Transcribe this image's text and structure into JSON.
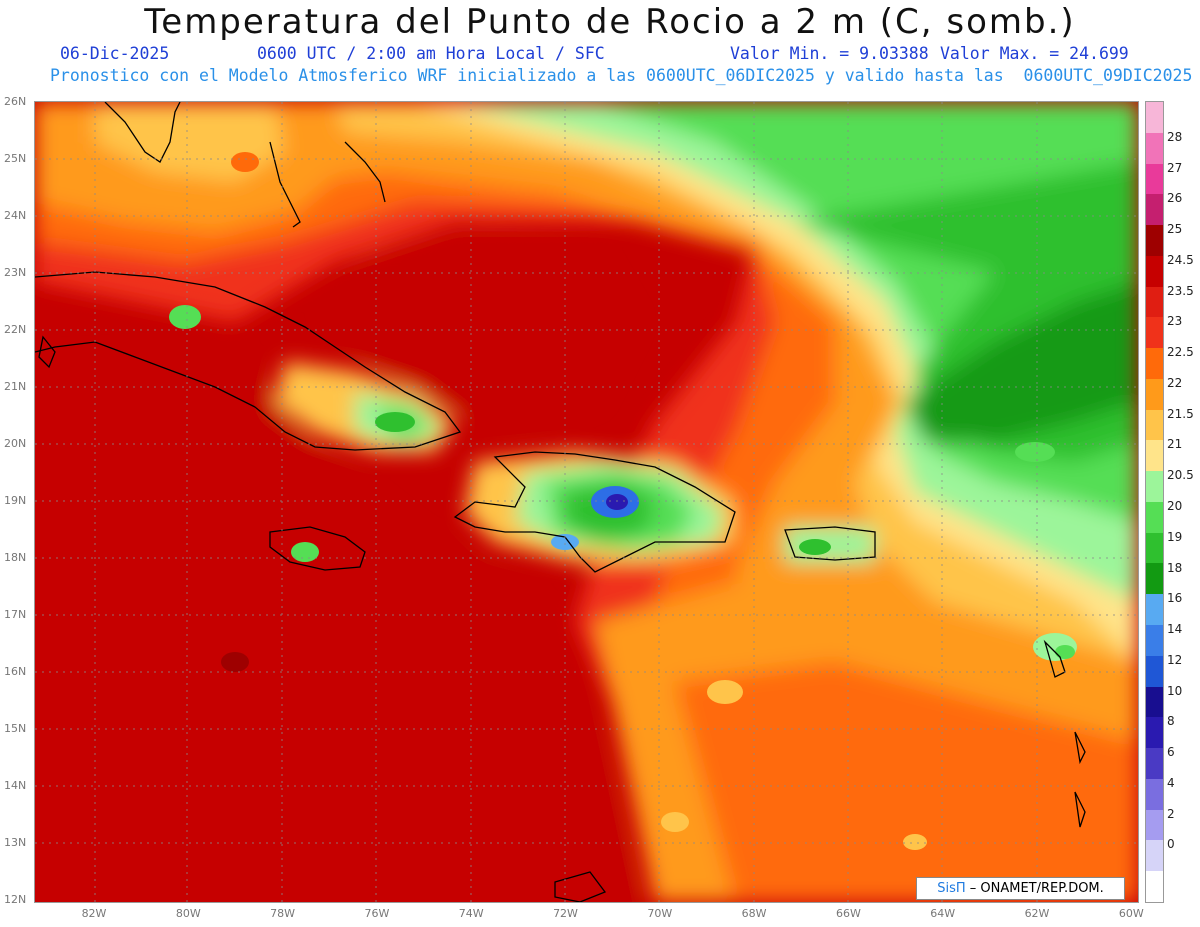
{
  "title": "Temperatura del Punto de Rocio a 2 m (C, somb.)",
  "subtitle": {
    "date": "06-Dic-2025",
    "time": "0600 UTC / 2:00 am Hora Local / SFC",
    "min": "Valor Min. = 9.03388",
    "max": "Valor Max. = 24.699"
  },
  "subtitle2": "Pronostico con el Modelo Atmosferico WRF inicializado a las 0600UTC_06DIC2025 y valido hasta las  0600UTC_09DIC2025",
  "credit": {
    "brand": "SisΠ",
    "org": "– ONAMET/REP.DOM."
  },
  "lat_labels": [
    "26N",
    "25N",
    "24N",
    "23N",
    "22N",
    "21N",
    "20N",
    "19N",
    "18N",
    "17N",
    "16N",
    "15N",
    "14N",
    "13N",
    "12N"
  ],
  "lon_labels": [
    "82W",
    "80W",
    "78W",
    "76W",
    "74W",
    "72W",
    "70W",
    "68W",
    "66W",
    "64W",
    "62W",
    "60W"
  ],
  "colorbar": {
    "labels": [
      "28",
      "27",
      "26",
      "25",
      "24.5",
      "23.5",
      "23",
      "22.5",
      "22",
      "21.5",
      "21",
      "20.5",
      "20",
      "19",
      "18",
      "16",
      "14",
      "12",
      "10",
      "8",
      "6",
      "4",
      "2",
      "0"
    ],
    "colors": [
      "#f7b6d8",
      "#f173b8",
      "#e93a9a",
      "#c51f6f",
      "#9e0000",
      "#c60000",
      "#e01e12",
      "#f0321a",
      "#ff6a0a",
      "#ff9a1a",
      "#ffc44a",
      "#ffe48a",
      "#9cf59a",
      "#55de55",
      "#2fc02f",
      "#129a12",
      "#58aaf2",
      "#3a7ee8",
      "#1f57d6",
      "#180e90",
      "#2a1ab0",
      "#4a3ac4",
      "#7a6ee0",
      "#a59cf0",
      "#d6d4f8",
      "#ffffff"
    ]
  }
}
